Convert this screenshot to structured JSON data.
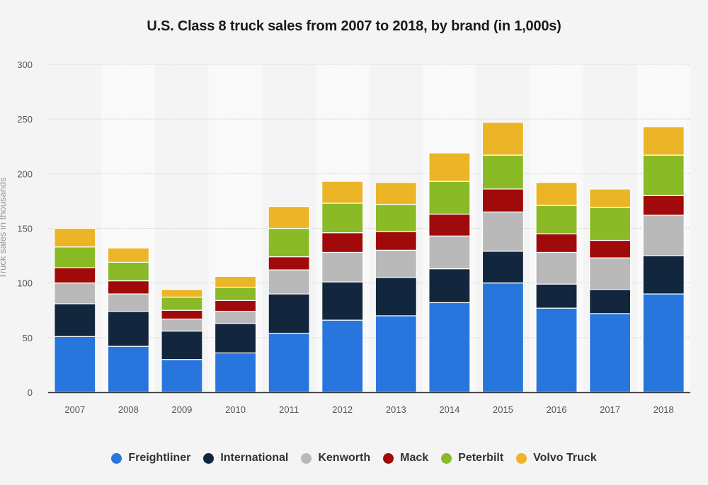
{
  "chart_data": {
    "type": "bar",
    "stacked": true,
    "title": "U.S. Class 8 truck sales from 2007 to 2018, by brand (in 1,000s)",
    "xlabel": "",
    "ylabel": "Truck sales in thousands",
    "ylim": [
      0,
      300
    ],
    "yticks": [
      0,
      50,
      100,
      150,
      200,
      250,
      300
    ],
    "grid": true,
    "legend_position": "bottom",
    "categories": [
      "2007",
      "2008",
      "2009",
      "2010",
      "2011",
      "2012",
      "2013",
      "2014",
      "2015",
      "2016",
      "2017",
      "2018"
    ],
    "series": [
      {
        "name": "Freightliner",
        "color": "#2876dd",
        "values": [
          51,
          42,
          30,
          36,
          54,
          66,
          70,
          82,
          100,
          77,
          72,
          90
        ]
      },
      {
        "name": "International",
        "color": "#12263d",
        "values": [
          30,
          32,
          26,
          27,
          36,
          35,
          35,
          31,
          29,
          22,
          22,
          35
        ]
      },
      {
        "name": "Kenworth",
        "color": "#b9b9b9",
        "values": [
          19,
          16,
          11,
          11,
          22,
          27,
          25,
          30,
          36,
          29,
          29,
          37
        ]
      },
      {
        "name": "Mack",
        "color": "#a10a0a",
        "values": [
          14,
          12,
          8,
          10,
          12,
          18,
          17,
          20,
          21,
          17,
          16,
          18
        ]
      },
      {
        "name": "Peterbilt",
        "color": "#8aba26",
        "values": [
          19,
          17,
          12,
          12,
          26,
          27,
          25,
          30,
          31,
          26,
          30,
          37
        ]
      },
      {
        "name": "Volvo Truck",
        "color": "#ecb427",
        "values": [
          17,
          13,
          7,
          10,
          20,
          20,
          20,
          26,
          30,
          21,
          17,
          26
        ]
      }
    ]
  }
}
